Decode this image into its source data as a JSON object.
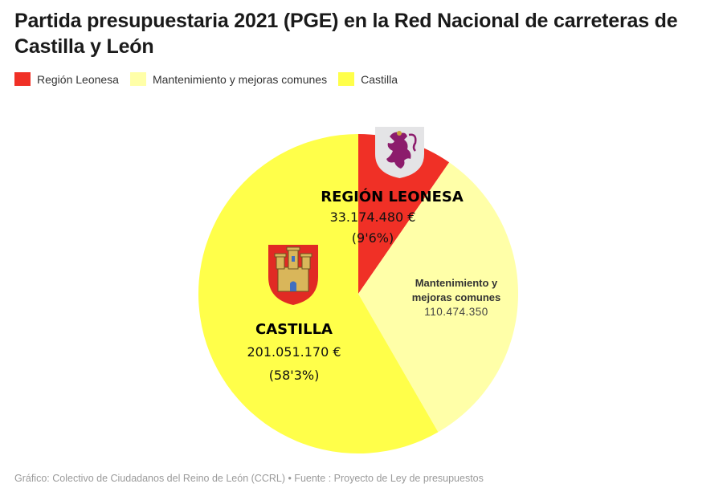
{
  "header": {
    "title": "Partida presupuestaria 2021 (PGE) en la Red Nacional de carreteras de Castilla y León"
  },
  "legend": [
    {
      "label": "Región Leonesa",
      "color": "#f03026"
    },
    {
      "label": "Mantenimiento y mejoras comunes",
      "color": "#ffffa8"
    },
    {
      "label": "Castilla",
      "color": "#ffff4a"
    }
  ],
  "labels": {
    "leonesa": {
      "name": "REGIÓN LEONESA",
      "value": "33.174.480 €",
      "pct": "(9'6%)"
    },
    "comunes": {
      "name_line1": "Mantenimiento y",
      "name_line2": "mejoras comunes",
      "value": "110.474.350"
    },
    "castilla": {
      "name": "CASTILLA",
      "value": "201.051.170 €",
      "pct": "(58'3%)"
    }
  },
  "icons": {
    "leon": "lion-coat-of-arms-icon",
    "castilla": "castle-coat-of-arms-icon"
  },
  "footer": {
    "text": "Gráfico: Colectivo de Ciudadanos del Reino de León (CCRL) • Fuente : Proyecto de Ley de presupuestos"
  },
  "chart_data": {
    "type": "pie",
    "title": "Partida presupuestaria 2021 (PGE) en la Red Nacional de carreteras de Castilla y León",
    "categories": [
      "Región Leonesa",
      "Mantenimiento y mejoras comunes",
      "Castilla"
    ],
    "values": [
      33174480,
      110474350,
      201051170
    ],
    "percentages": [
      9.6,
      32.1,
      58.3
    ],
    "colors": [
      "#f03026",
      "#ffffa8",
      "#ffff4a"
    ],
    "unit": "€",
    "start_angle": "12 o'clock, clockwise",
    "legend_position": "top",
    "source": "Gráfico: Colectivo de Ciudadanos del Reino de León (CCRL) • Fuente : Proyecto de Ley de presupuestos"
  }
}
